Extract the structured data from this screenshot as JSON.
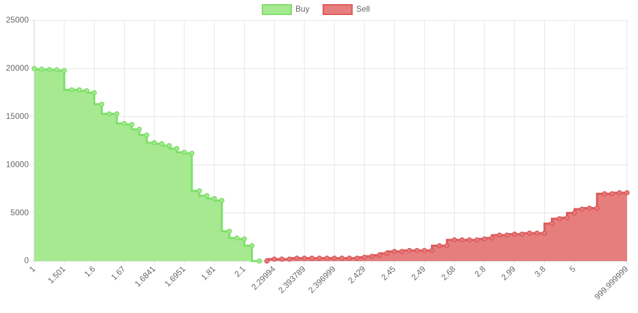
{
  "chart_data": {
    "type": "line",
    "stepped": true,
    "fill": true,
    "categories": [
      "1",
      null,
      null,
      null,
      "1.501",
      null,
      null,
      null,
      "1.6",
      null,
      null,
      null,
      "1.67",
      null,
      null,
      null,
      "1.6841",
      null,
      null,
      null,
      "1.6951",
      null,
      null,
      null,
      "1.81",
      null,
      null,
      null,
      "2.1",
      null,
      null,
      null,
      "2.29994",
      null,
      null,
      null,
      "2.393789",
      null,
      null,
      null,
      "2.396999",
      null,
      null,
      null,
      "2.429",
      null,
      null,
      null,
      "2.45",
      null,
      null,
      null,
      "2.49",
      null,
      null,
      null,
      "2.68",
      null,
      null,
      null,
      "2.8",
      null,
      null,
      null,
      "2.99",
      null,
      null,
      null,
      "3.8",
      null,
      null,
      null,
      "5",
      null,
      null,
      null,
      null,
      null,
      null,
      "999.999999"
    ],
    "series": [
      {
        "name": "Buy",
        "color": "#7ee06a",
        "fill_color": "#a6e991",
        "values": [
          20000,
          19950,
          19900,
          19880,
          19800,
          17800,
          17800,
          17700,
          17500,
          16300,
          15300,
          15300,
          14300,
          14200,
          13700,
          13100,
          12300,
          12200,
          12000,
          11700,
          11300,
          11200,
          7300,
          6800,
          6500,
          6300,
          3100,
          2400,
          2300,
          1600,
          0,
          null,
          null,
          null,
          null,
          null,
          null,
          null,
          null,
          null,
          null,
          null,
          null,
          null,
          null,
          null,
          null,
          null,
          null,
          null,
          null,
          null,
          null,
          null,
          null,
          null,
          null,
          null,
          null,
          null,
          null,
          null,
          null,
          null,
          null,
          null,
          null,
          null,
          null,
          null,
          null,
          null,
          null,
          null,
          null,
          null,
          null,
          null,
          null,
          null
        ]
      },
      {
        "name": "Sell",
        "color": "#dc5a5a",
        "fill_color": "#e77e7e",
        "values": [
          null,
          null,
          null,
          null,
          null,
          null,
          null,
          null,
          null,
          null,
          null,
          null,
          null,
          null,
          null,
          null,
          null,
          null,
          null,
          null,
          null,
          null,
          null,
          null,
          null,
          null,
          null,
          null,
          null,
          null,
          null,
          0,
          200,
          200,
          200,
          300,
          300,
          300,
          300,
          300,
          300,
          300,
          300,
          300,
          400,
          500,
          600,
          800,
          1000,
          1000,
          1100,
          1100,
          1100,
          1100,
          1600,
          1600,
          2200,
          2200,
          2200,
          2200,
          2300,
          2400,
          2700,
          2700,
          2800,
          2800,
          2900,
          2900,
          2900,
          3900,
          4400,
          4500,
          5000,
          5400,
          5500,
          5500,
          7000,
          7000,
          7100,
          7100
        ]
      }
    ],
    "ylim": [
      0,
      25000
    ],
    "yticks": [
      0,
      5000,
      10000,
      15000,
      20000,
      25000
    ],
    "grid": true,
    "legend": "top"
  }
}
